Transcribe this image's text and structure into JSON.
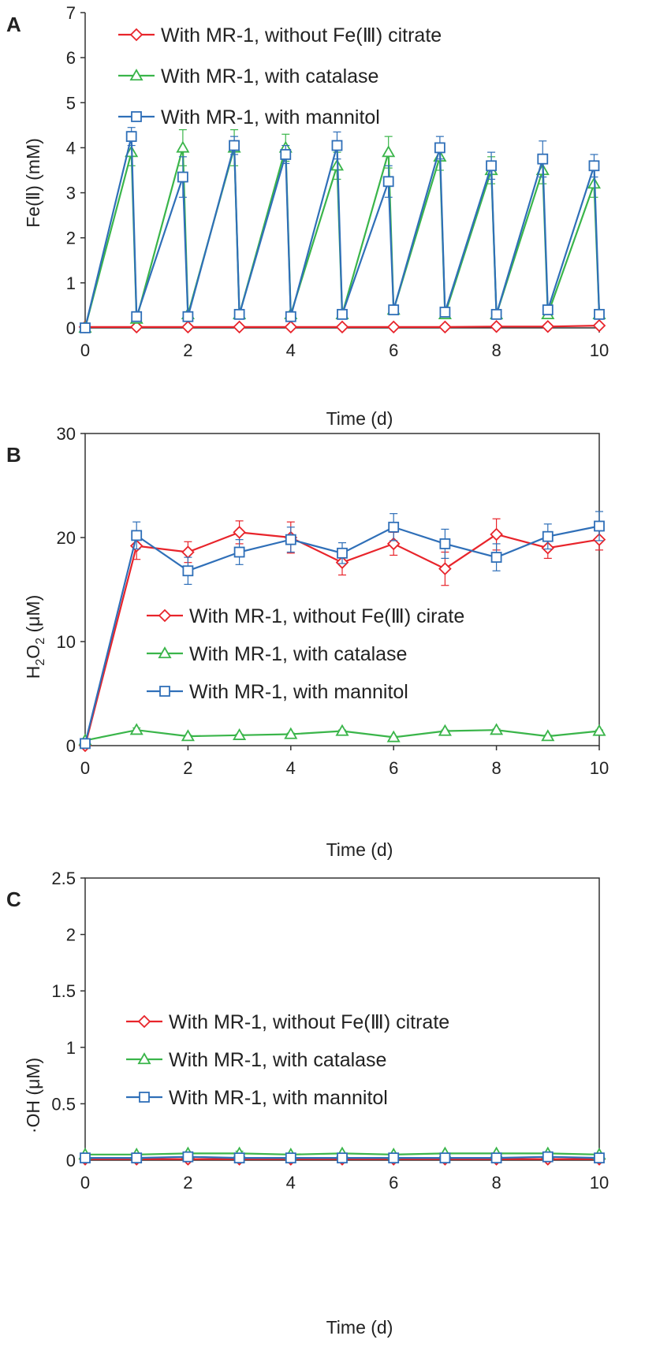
{
  "colors": {
    "red": "#e8242b",
    "green": "#3ab54a",
    "blue": "#2f6fb8",
    "axis": "#333333"
  },
  "chart_data": [
    {
      "panel": "A",
      "type": "line",
      "xlabel": "Time (d)",
      "ylabel": "Fe(Ⅱ) (mM)",
      "xlim": [
        0,
        10
      ],
      "ylim": [
        0,
        7
      ],
      "xticks": [
        "0",
        "2",
        "4",
        "6",
        "8",
        "10"
      ],
      "yticks": [
        "0",
        "1",
        "2",
        "3",
        "4",
        "5",
        "6",
        "7"
      ],
      "legend_position": "top-left",
      "series": [
        {
          "name": "With MR-1, without Fe(Ⅲ) citrate",
          "color": "red",
          "marker": "diamond",
          "x": [
            0,
            1,
            2,
            3,
            4,
            5,
            6,
            7,
            8,
            9,
            10
          ],
          "y": [
            0.02,
            0.02,
            0.02,
            0.02,
            0.02,
            0.02,
            0.02,
            0.02,
            0.03,
            0.03,
            0.05
          ],
          "err": [
            0,
            0,
            0,
            0,
            0,
            0,
            0,
            0,
            0,
            0,
            0
          ]
        },
        {
          "name": "With MR-1, with catalase",
          "color": "green",
          "marker": "triangle",
          "x": [
            0,
            0.9,
            1,
            1.9,
            2,
            2.9,
            3,
            3.9,
            4,
            4.9,
            5,
            5.9,
            6,
            6.9,
            7,
            7.9,
            8,
            8.9,
            9,
            9.9,
            10
          ],
          "y": [
            0,
            3.9,
            0.2,
            4.0,
            0.3,
            4.0,
            0.3,
            4.0,
            0.3,
            3.6,
            0.3,
            3.9,
            0.4,
            3.8,
            0.3,
            3.5,
            0.3,
            3.5,
            0.3,
            3.2,
            0.3
          ],
          "err": [
            0,
            0.3,
            0,
            0.4,
            0,
            0.4,
            0,
            0.3,
            0,
            0.3,
            0,
            0.35,
            0,
            0.3,
            0,
            0.3,
            0,
            0.3,
            0,
            0.3,
            0
          ]
        },
        {
          "name": "With MR-1, with mannitol",
          "color": "blue",
          "marker": "square",
          "x": [
            0,
            0.9,
            1,
            1.9,
            2,
            2.9,
            3,
            3.9,
            4,
            4.9,
            5,
            5.9,
            6,
            6.9,
            7,
            7.9,
            8,
            8.9,
            9,
            9.9,
            10
          ],
          "y": [
            0,
            4.25,
            0.25,
            3.35,
            0.25,
            4.05,
            0.3,
            3.85,
            0.25,
            4.05,
            0.3,
            3.25,
            0.4,
            4.0,
            0.35,
            3.6,
            0.3,
            3.75,
            0.4,
            3.6,
            0.3
          ],
          "err": [
            0,
            0.2,
            0,
            0.45,
            0,
            0.2,
            0,
            0.2,
            0,
            0.3,
            0,
            0.35,
            0,
            0.25,
            0,
            0.3,
            0,
            0.4,
            0,
            0.25,
            0
          ]
        }
      ]
    },
    {
      "panel": "B",
      "type": "line",
      "xlabel": "Time (d)",
      "ylabel_parts": [
        "H",
        "2",
        "O",
        "2",
        " (μM)"
      ],
      "xlim": [
        0,
        10
      ],
      "ylim": [
        0,
        30
      ],
      "xticks": [
        "0",
        "2",
        "4",
        "6",
        "8",
        "10"
      ],
      "yticks": [
        "0",
        "10",
        "20",
        "30"
      ],
      "legend_position": "middle",
      "series": [
        {
          "name": "With MR-1, without Fe(Ⅲ) cirate",
          "color": "red",
          "marker": "diamond",
          "x": [
            0,
            1,
            2,
            3,
            4,
            5,
            6,
            7,
            8,
            9,
            10
          ],
          "y": [
            0,
            19.2,
            18.6,
            20.5,
            20.0,
            17.6,
            19.4,
            17.0,
            20.3,
            19.0,
            19.8
          ],
          "err": [
            0,
            1.3,
            1.0,
            1.1,
            1.5,
            1.2,
            1.1,
            1.6,
            1.5,
            1.0,
            1.0
          ]
        },
        {
          "name": "With MR-1, with catalase",
          "color": "green",
          "marker": "triangle",
          "x": [
            0,
            1,
            2,
            3,
            4,
            5,
            6,
            7,
            8,
            9,
            10
          ],
          "y": [
            0.5,
            1.5,
            0.9,
            1.0,
            1.1,
            1.4,
            0.8,
            1.4,
            1.5,
            0.9,
            1.4
          ],
          "err": [
            0,
            0.2,
            0.1,
            0.1,
            0.1,
            0.1,
            0.1,
            0.1,
            0.1,
            0.1,
            0.1
          ]
        },
        {
          "name": "With MR-1, with mannitol",
          "color": "blue",
          "marker": "square",
          "x": [
            0,
            1,
            2,
            3,
            4,
            5,
            6,
            7,
            8,
            9,
            10
          ],
          "y": [
            0.2,
            20.2,
            16.8,
            18.6,
            19.8,
            18.5,
            21.0,
            19.4,
            18.1,
            20.1,
            21.1
          ],
          "err": [
            0,
            1.3,
            1.3,
            1.2,
            1.2,
            1.0,
            1.3,
            1.4,
            1.3,
            1.2,
            1.4
          ]
        }
      ]
    },
    {
      "panel": "C",
      "type": "line",
      "xlabel": "Time (d)",
      "ylabel": "·OH (μM)",
      "xlim": [
        0,
        10
      ],
      "ylim": [
        0,
        2.5
      ],
      "xticks": [
        "0",
        "2",
        "4",
        "6",
        "8",
        "10"
      ],
      "yticks": [
        "0",
        "0.5",
        "1",
        "1.5",
        "2",
        "2.5"
      ],
      "legend_position": "middle",
      "series": [
        {
          "name": "With MR-1, without Fe(Ⅲ) citrate",
          "color": "red",
          "marker": "diamond",
          "x": [
            0,
            1,
            2,
            3,
            4,
            5,
            6,
            7,
            8,
            9,
            10
          ],
          "y": [
            0.01,
            0.01,
            0.01,
            0.01,
            0.01,
            0.01,
            0.01,
            0.01,
            0.01,
            0.01,
            0.01
          ],
          "err": [
            0,
            0,
            0,
            0,
            0,
            0,
            0,
            0,
            0,
            0,
            0
          ]
        },
        {
          "name": "With MR-1, with catalase",
          "color": "green",
          "marker": "triangle",
          "x": [
            0,
            1,
            2,
            3,
            4,
            5,
            6,
            7,
            8,
            9,
            10
          ],
          "y": [
            0.05,
            0.05,
            0.06,
            0.06,
            0.05,
            0.06,
            0.05,
            0.06,
            0.06,
            0.06,
            0.05
          ],
          "err": [
            0,
            0,
            0,
            0.02,
            0,
            0,
            0,
            0,
            0,
            0,
            0
          ]
        },
        {
          "name": "With MR-1, with mannitol",
          "color": "blue",
          "marker": "square",
          "x": [
            0,
            1,
            2,
            3,
            4,
            5,
            6,
            7,
            8,
            9,
            10
          ],
          "y": [
            0.02,
            0.02,
            0.03,
            0.02,
            0.02,
            0.02,
            0.02,
            0.02,
            0.02,
            0.03,
            0.02
          ],
          "err": [
            0,
            0,
            0,
            0,
            0,
            0,
            0,
            0,
            0,
            0,
            0
          ]
        }
      ]
    }
  ]
}
